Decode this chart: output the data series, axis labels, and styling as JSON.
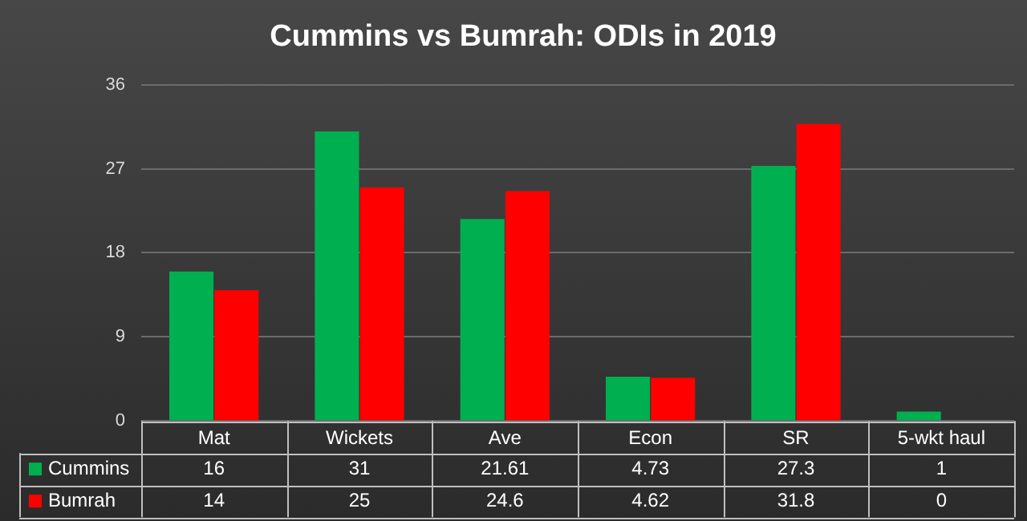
{
  "chart_data": {
    "type": "bar",
    "title": "Cummins vs Bumrah: ODIs in 2019",
    "categories": [
      "Mat",
      "Wickets",
      "Ave",
      "Econ",
      "SR",
      "5-wkt haul"
    ],
    "series": [
      {
        "name": "Cummins",
        "color": "#00b050",
        "values": [
          16,
          31,
          21.61,
          4.73,
          27.3,
          1
        ]
      },
      {
        "name": "Bumrah",
        "color": "#ff0000",
        "values": [
          14,
          25,
          24.6,
          4.62,
          31.8,
          0
        ]
      }
    ],
    "ylim": [
      0,
      36
    ],
    "yticks": [
      0,
      9,
      18,
      27,
      36
    ],
    "grid": "y",
    "legend": "bottom",
    "data_labels": true
  }
}
